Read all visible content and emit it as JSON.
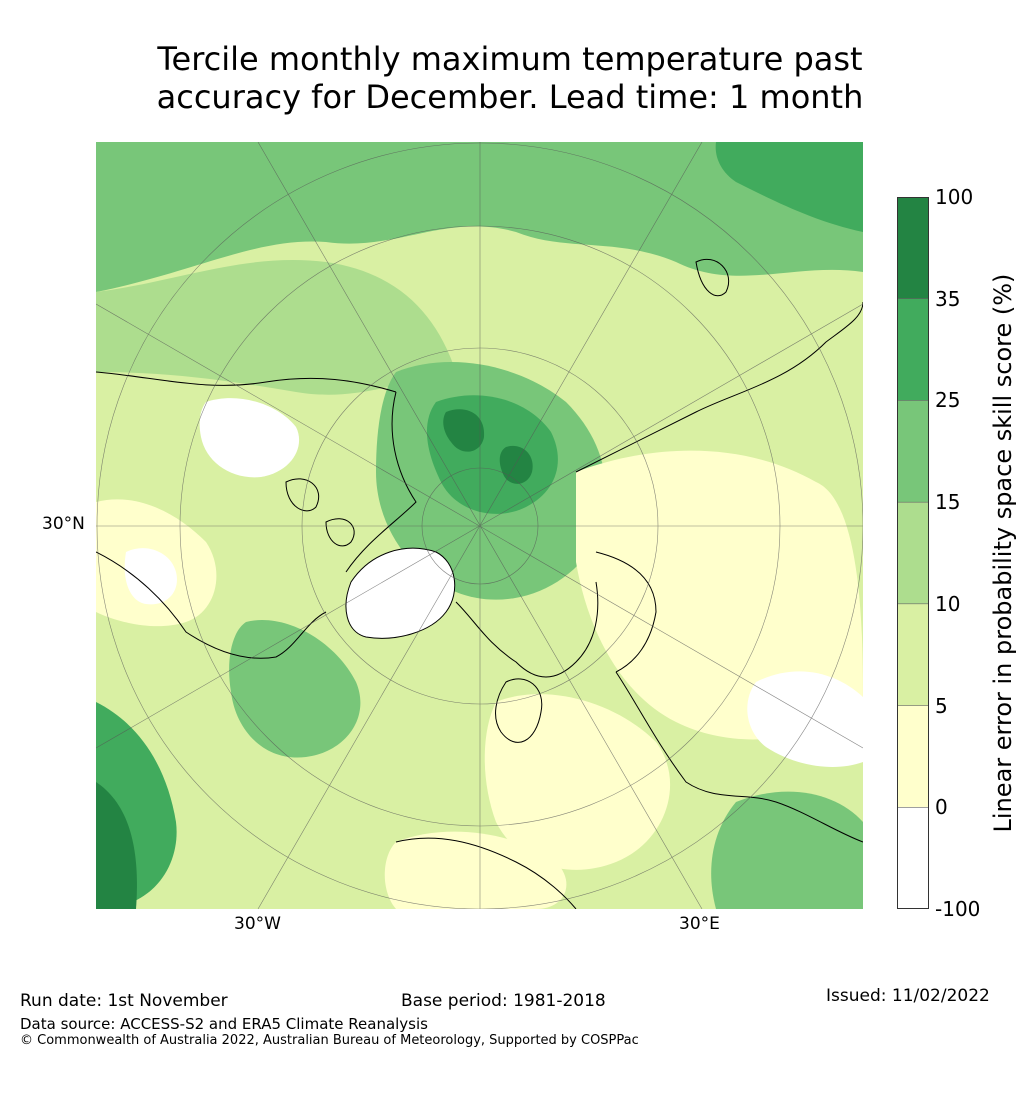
{
  "title": {
    "line1": "Tercile monthly maximum temperature past",
    "line2": "accuracy for December. Lead time: 1 month"
  },
  "map": {
    "lat_labels": [
      "30°N"
    ],
    "lon_labels": [
      "30°W",
      "30°E"
    ],
    "colors": {
      "band_neg": "#ffffff",
      "band_0_5": "#ffffcc",
      "band_5_10": "#d9f0a3",
      "band_10_15": "#addd8e",
      "band_15_25": "#78c679",
      "band_25_35": "#41ab5d",
      "band_35_100": "#238443"
    }
  },
  "colorbar": {
    "title": "Linear error in probability space skill score (%)",
    "ticks": [
      "100",
      "35",
      "25",
      "15",
      "10",
      "5",
      "0",
      "-100"
    ],
    "colors": [
      "#238443",
      "#41ab5d",
      "#78c679",
      "#addd8e",
      "#d9f0a3",
      "#ffffcc",
      "#ffffff"
    ]
  },
  "footer": {
    "run_date": "Run date: 1st November",
    "base_period": "Base period: 1981-2018",
    "issued": "Issued: 11/02/2022",
    "data_source": "Data source: ACCESS-S2 and ERA5 Climate Reanalysis",
    "copyright": "© Commonwealth of Australia 2022, Australian Bureau of Meteorology, Supported by COSPPac"
  }
}
